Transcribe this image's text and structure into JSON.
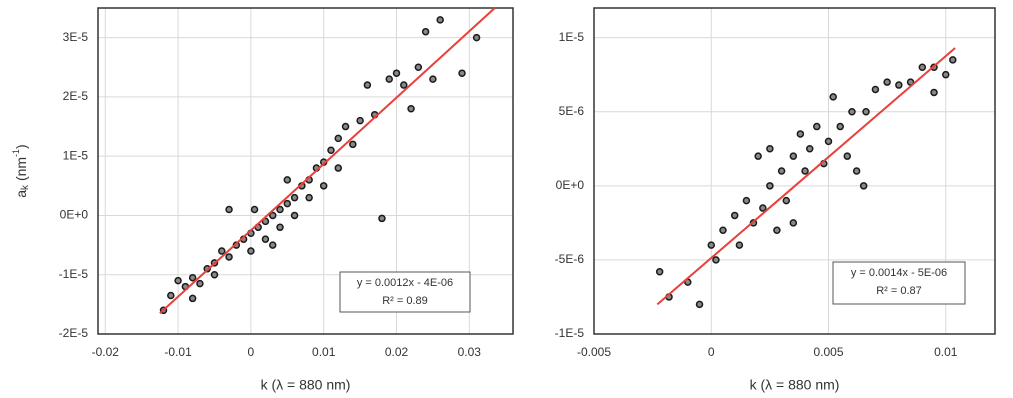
{
  "chart_data": [
    {
      "type": "scatter",
      "xlabel": "k (λ = 880 nm)",
      "ylabel": [
        "a",
        "k",
        " (nm",
        "-1",
        ")"
      ],
      "xlim": [
        -0.021,
        0.036
      ],
      "xticks": [
        -0.02,
        -0.01,
        0,
        0.01,
        0.02,
        0.03
      ],
      "ylim": [
        -2e-05,
        3.5e-05
      ],
      "yticks": [
        {
          "value": -2e-05,
          "label": "-2E-5"
        },
        {
          "value": -1e-05,
          "label": "-1E-5"
        },
        {
          "value": 0,
          "label": "0E+0"
        },
        {
          "value": 1e-05,
          "label": "1E-5"
        },
        {
          "value": 2e-05,
          "label": "2E-5"
        },
        {
          "value": 3e-05,
          "label": "3E-5"
        }
      ],
      "grid": true,
      "color": "#1a1a1a",
      "annotation": [
        "y = 0.0012x - 4E-06",
        "R² = 0.89"
      ],
      "trendline": {
        "color": "#e8403a",
        "x": [
          -0.0125,
          0.0335
        ],
        "y": [
          -1.65e-05,
          3.5e-05
        ]
      },
      "x": [
        -0.012,
        -0.011,
        -0.01,
        -0.009,
        -0.008,
        -0.007,
        -0.006,
        -0.005,
        -0.005,
        -0.004,
        -0.003,
        -0.003,
        -0.002,
        -0.001,
        0,
        0,
        0.001,
        0.002,
        0.002,
        0.003,
        0.004,
        0.004,
        0.005,
        0.006,
        0.006,
        0.007,
        0.008,
        0.008,
        0.009,
        0.01,
        0.01,
        0.011,
        0.012,
        0.012,
        0.013,
        0.014,
        0.015,
        0.016,
        0.017,
        0.018,
        0.019,
        0.02,
        0.021,
        0.022,
        0.023,
        0.024,
        0.025,
        0.026,
        0.029,
        0.031,
        0.0005,
        -0.008,
        0.005,
        0.003
      ],
      "y": [
        -1.6e-05,
        -1.35e-05,
        -1.1e-05,
        -1.2e-05,
        -1.05e-05,
        -1.15e-05,
        -9e-06,
        -8e-06,
        -1e-05,
        -6e-06,
        -7e-06,
        1e-06,
        -5e-06,
        -4e-06,
        -3e-06,
        -6e-06,
        -2e-06,
        -1e-06,
        -4e-06,
        0,
        1e-06,
        -2e-06,
        2e-06,
        3e-06,
        0,
        5e-06,
        6e-06,
        3e-06,
        8e-06,
        9e-06,
        5e-06,
        1.1e-05,
        1.3e-05,
        8e-06,
        1.5e-05,
        1.2e-05,
        1.6e-05,
        2.2e-05,
        1.7e-05,
        -5e-07,
        2.3e-05,
        2.4e-05,
        2.2e-05,
        1.8e-05,
        2.5e-05,
        3.1e-05,
        2.3e-05,
        3.3e-05,
        2.4e-05,
        3e-05,
        1e-06,
        -1.4e-05,
        6e-06,
        -5e-06
      ]
    },
    {
      "type": "scatter",
      "xlabel": "k (λ = 880 nm)",
      "xlim": [
        -0.005,
        0.0121
      ],
      "xticks": [
        -0.005,
        0,
        0.005,
        0.01
      ],
      "ylim": [
        -1e-05,
        1.2e-05
      ],
      "yticks": [
        {
          "value": -1e-05,
          "label": "-1E-5"
        },
        {
          "value": -5e-06,
          "label": "-5E-6"
        },
        {
          "value": 0,
          "label": "0E+0"
        },
        {
          "value": 5e-06,
          "label": "5E-6"
        },
        {
          "value": 1e-05,
          "label": "1E-5"
        }
      ],
      "grid": true,
      "color": "#1a1a1a",
      "annotation": [
        "y = 0.0014x - 5E-06",
        "R² = 0.87"
      ],
      "trendline": {
        "color": "#e8403a",
        "x": [
          -0.0023,
          0.0104
        ],
        "y": [
          -8e-06,
          9.3e-06
        ]
      },
      "x": [
        -0.0022,
        -0.0018,
        -0.001,
        -0.0005,
        0,
        0.0002,
        0.0005,
        0.001,
        0.0012,
        0.0015,
        0.0018,
        0.002,
        0.0022,
        0.0025,
        0.0028,
        0.003,
        0.0032,
        0.0035,
        0.0038,
        0.004,
        0.0042,
        0.0045,
        0.0048,
        0.005,
        0.0052,
        0.0055,
        0.0058,
        0.006,
        0.0062,
        0.0065,
        0.0066,
        0.007,
        0.0075,
        0.008,
        0.0085,
        0.009,
        0.0095,
        0.0095,
        0.01,
        0.0103,
        0.0035,
        0.0025
      ],
      "y": [
        -5.8e-06,
        -7.5e-06,
        -6.5e-06,
        -8e-06,
        -4e-06,
        -5e-06,
        -3e-06,
        -2e-06,
        -4e-06,
        -1e-06,
        -2.5e-06,
        2e-06,
        -1.5e-06,
        0,
        -3e-06,
        1e-06,
        -1e-06,
        2e-06,
        3.5e-06,
        1e-06,
        2.5e-06,
        4e-06,
        1.5e-06,
        3e-06,
        6e-06,
        4e-06,
        2e-06,
        5e-06,
        1e-06,
        0,
        5e-06,
        6.5e-06,
        7e-06,
        6.8e-06,
        7e-06,
        8e-06,
        6.3e-06,
        8e-06,
        7.5e-06,
        8.5e-06,
        -2.5e-06,
        2.5e-06
      ]
    }
  ]
}
